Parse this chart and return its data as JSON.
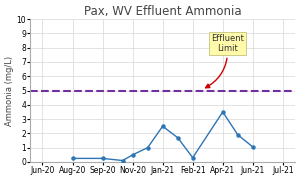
{
  "title": "Pax, WV Effluent Ammonia",
  "ylabel": "Ammonia (mg/L)",
  "ylim": [
    0,
    10
  ],
  "yticks": [
    0,
    1,
    2,
    3,
    4,
    5,
    6,
    7,
    8,
    9,
    10
  ],
  "xlabels": [
    "Jun-20",
    "Aug-20",
    "Sep-20",
    "Nov-20",
    "Jan-21",
    "Feb-21",
    "Apr-21",
    "Jun-21",
    "Jul-21"
  ],
  "x_positions": [
    0,
    1,
    2,
    3,
    4,
    5,
    6,
    7,
    8
  ],
  "dx": [
    1,
    2,
    2.67,
    3,
    3.5,
    4,
    4.5,
    5,
    6,
    6.5,
    7
  ],
  "dy": [
    0.25,
    0.25,
    0.1,
    0.5,
    1.0,
    2.5,
    1.7,
    0.3,
    3.5,
    1.9,
    1.05
  ],
  "effluent_limit": 5.0,
  "effluent_limit_color": "#7030A0",
  "line_color": "#2E75B6",
  "annotation_text": "Effluent\nLimit",
  "annotation_box_color": "#FFFAAA",
  "annotation_arrow_color": "#cc0000",
  "title_fontsize": 8.5,
  "label_fontsize": 6,
  "tick_fontsize": 5.5,
  "background_color": "#ffffff",
  "grid_color": "#d8d8d8"
}
